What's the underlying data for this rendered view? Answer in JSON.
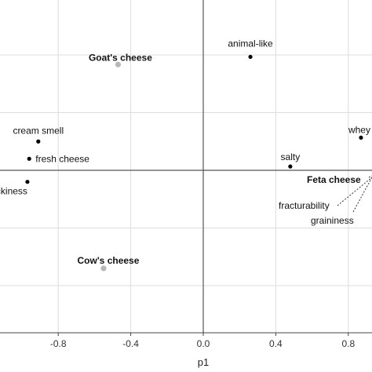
{
  "chart_data": {
    "type": "scatter",
    "xlabel": "p1",
    "ylabel": "",
    "xlim": [
      -1.12,
      0.92
    ],
    "ylim": [
      -0.92,
      0.92
    ],
    "xticks": [
      -0.8,
      -0.4,
      0.0,
      0.4,
      0.8
    ],
    "xtick_labels": [
      "-0.8",
      "-0.4",
      "0.0",
      "0.4",
      "0.8"
    ],
    "yticks": [
      -0.6,
      -0.3,
      0.0,
      0.3,
      0.6
    ],
    "grid": true,
    "colors": {
      "attribute": "#000000",
      "product": "#b8b8b8",
      "grid": "#dddddd",
      "axis": "#555555",
      "frame": "#444444"
    },
    "series": [
      {
        "name": "",
        "role": "attribute",
        "points": [
          {
            "label": "animal-like",
            "x": 0.26,
            "y": 0.59
          },
          {
            "label": "whey",
            "x": 0.87,
            "y": 0.17
          },
          {
            "label": "salty",
            "x": 0.48,
            "y": 0.02
          },
          {
            "label": "cream smell",
            "x": -0.91,
            "y": 0.15
          },
          {
            "label": "fresh cheese",
            "x": -0.96,
            "y": 0.06
          },
          {
            "label": "stickiness",
            "x": -0.97,
            "y": -0.06
          },
          {
            "label": "fracturability",
            "x": 0.97,
            "y": -0.04
          },
          {
            "label": "graininess",
            "x": 0.98,
            "y": -0.1
          }
        ]
      },
      {
        "name": "",
        "role": "product",
        "points": [
          {
            "label": "Goat's cheese",
            "x": -0.47,
            "y": 0.55
          },
          {
            "label": "Feta cheese",
            "x": 0.96,
            "y": -0.05
          },
          {
            "label": "Cow's cheese",
            "x": -0.55,
            "y": -0.51
          }
        ]
      }
    ]
  }
}
